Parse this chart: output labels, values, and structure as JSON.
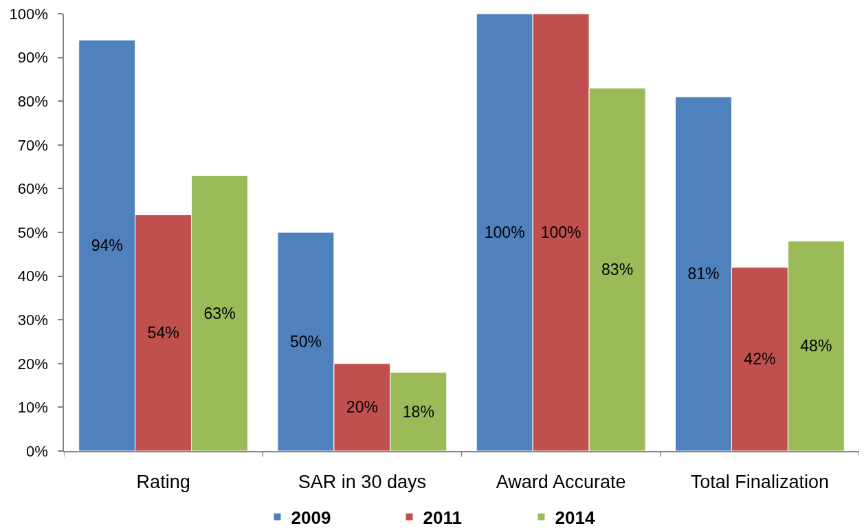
{
  "chart_data": {
    "type": "bar",
    "categories": [
      "Rating",
      "SAR in 30 days",
      "Award Accurate",
      "Total Finalization"
    ],
    "series": [
      {
        "name": "2009",
        "color": "#4f81bd",
        "values": [
          94,
          50,
          100,
          81
        ],
        "value_labels": [
          "94%",
          "50%",
          "100%",
          "81%"
        ]
      },
      {
        "name": "2011",
        "color": "#c0504d",
        "values": [
          54,
          20,
          100,
          42
        ],
        "value_labels": [
          "54%",
          "20%",
          "100%",
          "42%"
        ]
      },
      {
        "name": "2014",
        "color": "#9bbb59",
        "values": [
          63,
          18,
          83,
          48
        ],
        "value_labels": [
          "63%",
          "18%",
          "83%",
          "48%"
        ]
      }
    ],
    "ylim": [
      0,
      100
    ],
    "yticks": [
      {
        "value": 0,
        "label": "0%"
      },
      {
        "value": 10,
        "label": "10%"
      },
      {
        "value": 20,
        "label": "20%"
      },
      {
        "value": 30,
        "label": "30%"
      },
      {
        "value": 40,
        "label": "40%"
      },
      {
        "value": 50,
        "label": "50%"
      },
      {
        "value": 60,
        "label": "60%"
      },
      {
        "value": 70,
        "label": "70%"
      },
      {
        "value": 80,
        "label": "80%"
      },
      {
        "value": 90,
        "label": "90%"
      },
      {
        "value": 100,
        "label": "100%"
      }
    ],
    "grid": false,
    "legend": "bottom"
  }
}
